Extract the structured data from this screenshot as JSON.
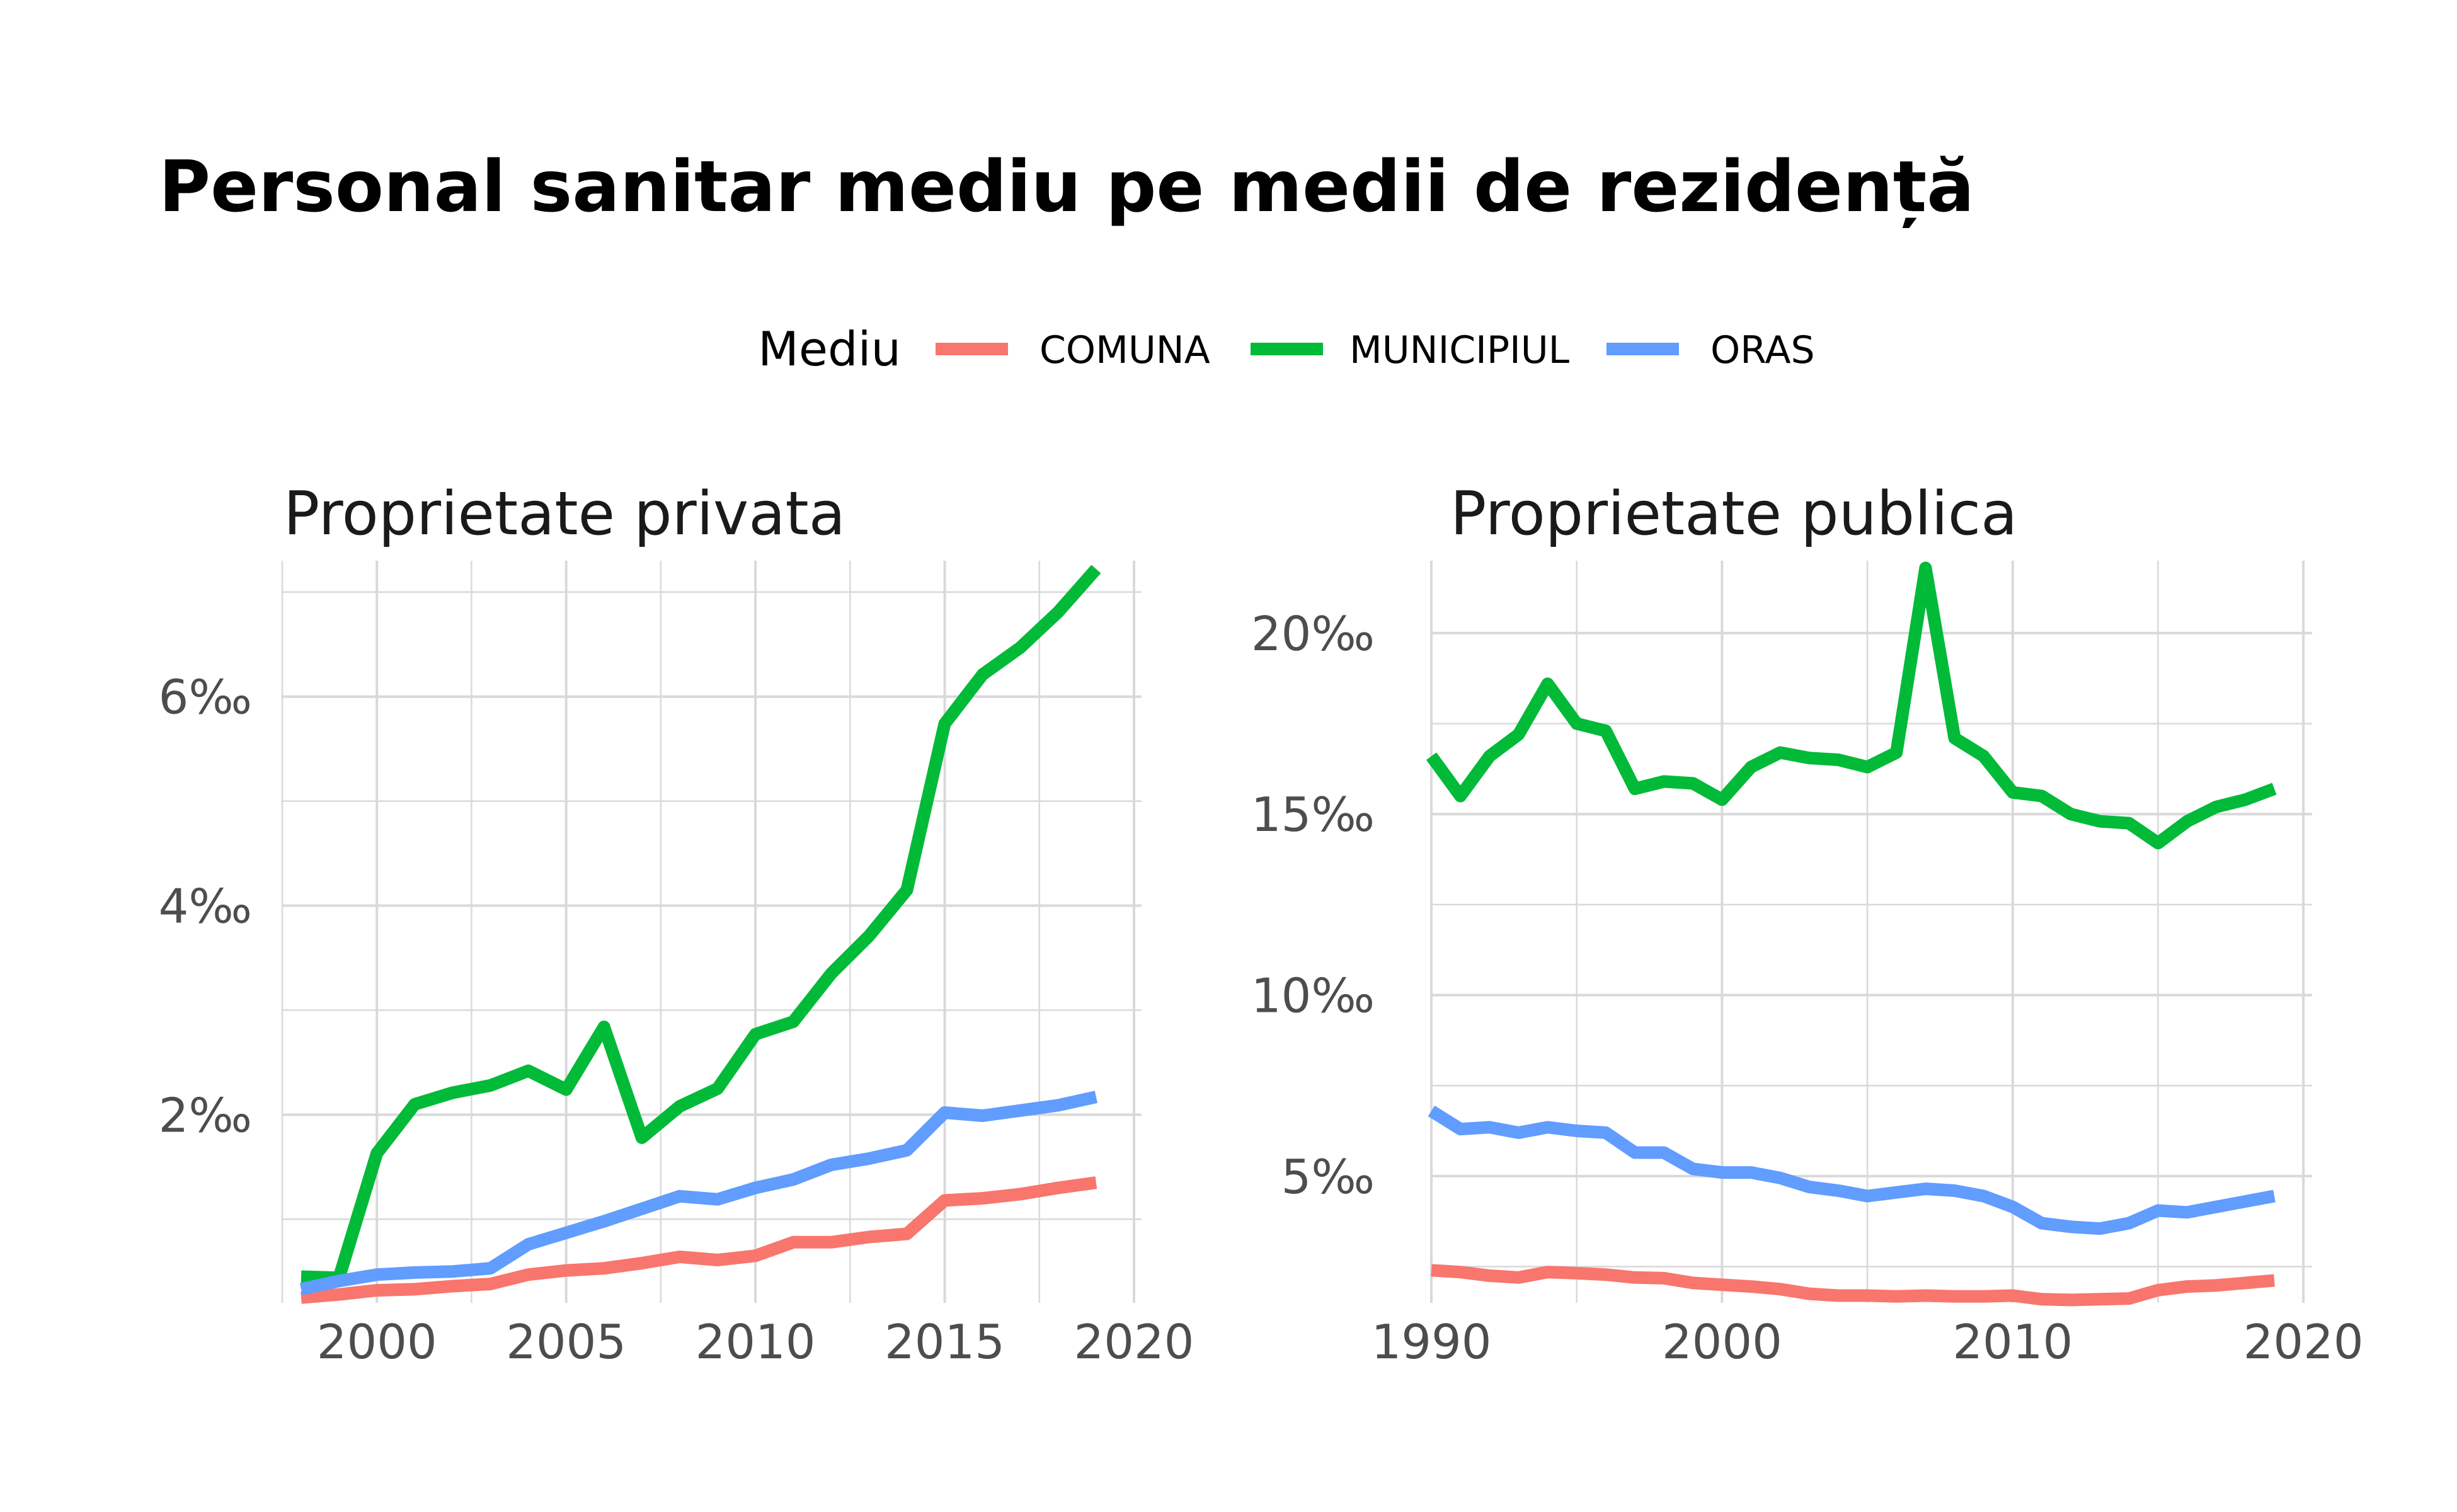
{
  "title": "Personal sanitar mediu pe medii de rezidență",
  "legend": {
    "title": "Mediu",
    "position": "top",
    "entries": [
      {
        "label": "COMUNA",
        "color": "#F8766D"
      },
      {
        "label": "MUNICIPIUL",
        "color": "#00BA38"
      },
      {
        "label": "ORAS",
        "color": "#619CFF"
      }
    ]
  },
  "chart_data": [
    {
      "type": "line",
      "title": "Proprietate privata",
      "xlabel": "",
      "ylabel": "",
      "xlim": [
        1997.5,
        2020.2
      ],
      "ylim": [
        0.2,
        7.3
      ],
      "x_ticks": [
        2000,
        2005,
        2010,
        2015,
        2020
      ],
      "x_tick_labels": [
        "2000",
        "2005",
        "2010",
        "2015",
        "2020"
      ],
      "x_minor_ticks": [
        1997.5,
        2002.5,
        2007.5,
        2012.5,
        2017.5
      ],
      "y_ticks": [
        2,
        4,
        6
      ],
      "y_tick_labels": [
        "2‰",
        "4‰",
        "6‰"
      ],
      "y_minor_ticks": [
        1,
        3,
        5,
        7
      ],
      "grid": true,
      "series": [
        {
          "name": "COMUNA",
          "color": "#F8766D",
          "x": [
            1998,
            1999,
            2000,
            2001,
            2002,
            2003,
            2004,
            2005,
            2006,
            2007,
            2008,
            2009,
            2010,
            2011,
            2012,
            2013,
            2014,
            2015,
            2016,
            2017,
            2018,
            2019
          ],
          "values": [
            0.25,
            0.28,
            0.32,
            0.33,
            0.36,
            0.38,
            0.47,
            0.51,
            0.53,
            0.58,
            0.64,
            0.61,
            0.65,
            0.78,
            0.78,
            0.83,
            0.86,
            1.18,
            1.2,
            1.24,
            1.3,
            1.35
          ]
        },
        {
          "name": "MUNICIPIUL",
          "color": "#00BA38",
          "x": [
            1998,
            1999,
            2000,
            2001,
            2002,
            2003,
            2004,
            2005,
            2006,
            2007,
            2008,
            2009,
            2010,
            2011,
            2012,
            2013,
            2014,
            2015,
            2016,
            2017,
            2018,
            2019
          ],
          "values": [
            0.45,
            0.44,
            1.63,
            2.1,
            2.21,
            2.28,
            2.42,
            2.24,
            2.84,
            1.78,
            2.08,
            2.25,
            2.77,
            2.89,
            3.35,
            3.71,
            4.15,
            5.74,
            6.21,
            6.47,
            6.81,
            7.22
          ]
        },
        {
          "name": "ORAS",
          "color": "#619CFF",
          "x": [
            1998,
            1999,
            2000,
            2001,
            2002,
            2003,
            2004,
            2005,
            2006,
            2007,
            2008,
            2009,
            2010,
            2011,
            2012,
            2013,
            2014,
            2015,
            2016,
            2017,
            2018,
            2019
          ],
          "values": [
            0.33,
            0.41,
            0.47,
            0.49,
            0.5,
            0.53,
            0.76,
            0.87,
            0.98,
            1.1,
            1.22,
            1.19,
            1.3,
            1.38,
            1.52,
            1.58,
            1.66,
            2.02,
            1.99,
            2.04,
            2.09,
            2.17
          ]
        }
      ]
    },
    {
      "type": "line",
      "title": "Proprietate publica",
      "xlabel": "",
      "ylabel": "",
      "xlim": [
        1990,
        2020.3
      ],
      "ylim": [
        1.5,
        22
      ],
      "x_ticks": [
        1990,
        2000,
        2010,
        2020
      ],
      "x_tick_labels": [
        "1990",
        "2000",
        "2010",
        "2020"
      ],
      "x_minor_ticks": [
        1995,
        2005,
        2015
      ],
      "y_ticks": [
        5,
        10,
        15,
        20
      ],
      "y_tick_labels": [
        "5‰",
        "10‰",
        "15‰",
        "20‰"
      ],
      "y_minor_ticks": [
        2.5,
        7.5,
        12.5,
        17.5
      ],
      "grid": true,
      "series": [
        {
          "name": "COMUNA",
          "color": "#F8766D",
          "x": [
            1990,
            1991,
            1992,
            1993,
            1994,
            1995,
            1996,
            1997,
            1998,
            1999,
            2000,
            2001,
            2002,
            2003,
            2004,
            2005,
            2006,
            2007,
            2008,
            2009,
            2010,
            2011,
            2012,
            2013,
            2014,
            2015,
            2016,
            2017,
            2018,
            2019
          ],
          "values": [
            2.4,
            2.35,
            2.25,
            2.2,
            2.35,
            2.32,
            2.28,
            2.2,
            2.18,
            2.05,
            2.0,
            1.95,
            1.88,
            1.75,
            1.7,
            1.7,
            1.68,
            1.7,
            1.68,
            1.68,
            1.7,
            1.6,
            1.58,
            1.6,
            1.62,
            1.85,
            1.95,
            1.98,
            2.05,
            2.12
          ]
        },
        {
          "name": "MUNICIPIUL",
          "color": "#00BA38",
          "x": [
            1990,
            1991,
            1992,
            1993,
            1994,
            1995,
            1996,
            1997,
            1998,
            1999,
            2000,
            2001,
            2002,
            2003,
            2004,
            2005,
            2006,
            2007,
            2008,
            2009,
            2010,
            2011,
            2012,
            2013,
            2014,
            2015,
            2016,
            2017,
            2018,
            2019
          ],
          "values": [
            16.6,
            15.5,
            16.6,
            17.2,
            18.6,
            17.5,
            17.3,
            15.7,
            15.9,
            15.85,
            15.4,
            16.3,
            16.7,
            16.55,
            16.5,
            16.3,
            16.7,
            21.8,
            17.1,
            16.6,
            15.6,
            15.5,
            15.0,
            14.8,
            14.75,
            14.2,
            14.8,
            15.2,
            15.4,
            15.7
          ]
        },
        {
          "name": "ORAS",
          "color": "#619CFF",
          "x": [
            1990,
            1991,
            1992,
            1993,
            1994,
            1995,
            1996,
            1997,
            1998,
            1999,
            2000,
            2001,
            2002,
            2003,
            2004,
            2005,
            2006,
            2007,
            2008,
            2009,
            2010,
            2011,
            2012,
            2013,
            2014,
            2015,
            2016,
            2017,
            2018,
            2019
          ],
          "values": [
            6.8,
            6.3,
            6.35,
            6.2,
            6.35,
            6.25,
            6.2,
            5.65,
            5.65,
            5.2,
            5.1,
            5.1,
            4.95,
            4.7,
            4.6,
            4.45,
            4.55,
            4.65,
            4.6,
            4.45,
            4.15,
            3.7,
            3.6,
            3.55,
            3.7,
            4.05,
            4.0,
            4.15,
            4.3,
            4.45
          ]
        }
      ]
    }
  ]
}
